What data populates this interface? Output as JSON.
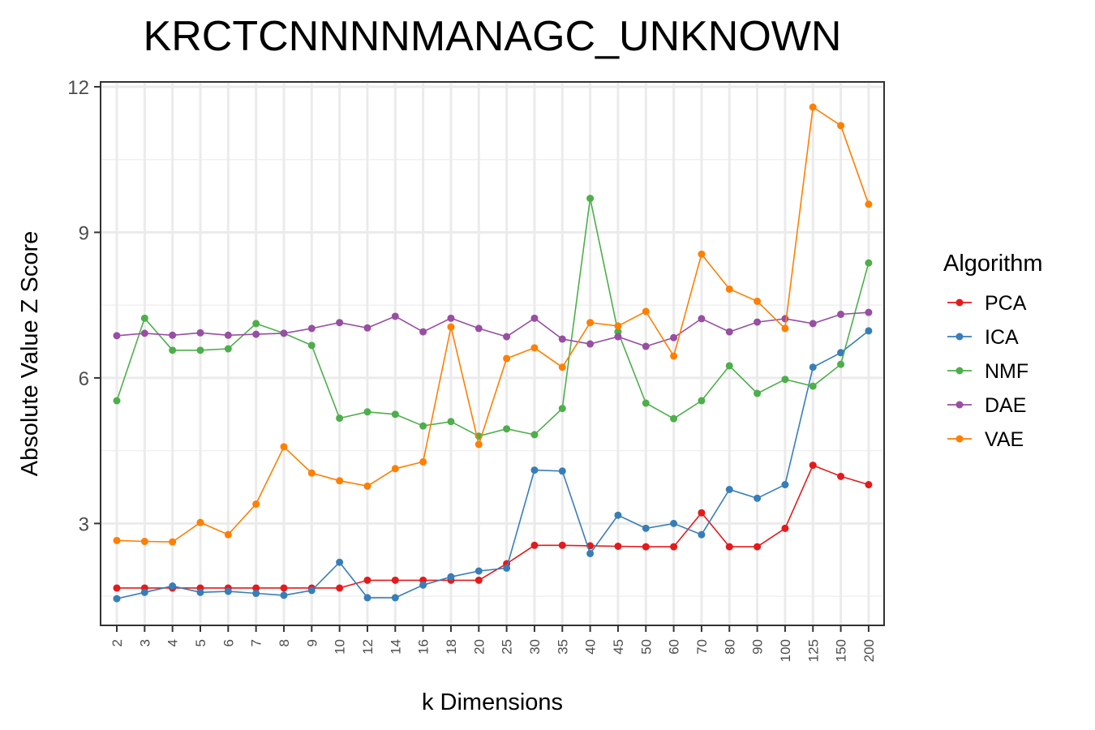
{
  "chart_data": {
    "type": "line",
    "title": "KRCTCNNNNMANAGC_UNKNOWN",
    "xlabel": "k Dimensions",
    "ylabel": "Absolute Value Z Score",
    "categories": [
      "2",
      "3",
      "4",
      "5",
      "6",
      "7",
      "8",
      "9",
      "10",
      "12",
      "14",
      "16",
      "18",
      "20",
      "25",
      "30",
      "35",
      "40",
      "45",
      "50",
      "60",
      "70",
      "80",
      "90",
      "100",
      "125",
      "150",
      "200"
    ],
    "ylim": [
      0.9,
      12.1
    ],
    "yticks": [
      "3",
      "6",
      "9",
      "12"
    ],
    "ytick_values": [
      3,
      6,
      9,
      12
    ],
    "grid": true,
    "legend": {
      "title": "Algorithm",
      "placement": "right"
    },
    "series": [
      {
        "name": "PCA",
        "color": "#E41A1C",
        "values": [
          1.67,
          1.67,
          1.67,
          1.67,
          1.67,
          1.67,
          1.67,
          1.67,
          1.67,
          1.83,
          1.83,
          1.83,
          1.83,
          1.83,
          2.17,
          2.55,
          2.55,
          2.54,
          2.53,
          2.52,
          2.52,
          3.22,
          2.52,
          2.52,
          2.9,
          4.2,
          3.97,
          3.8
        ]
      },
      {
        "name": "ICA",
        "color": "#377EB8",
        "values": [
          1.45,
          1.58,
          1.71,
          1.58,
          1.6,
          1.56,
          1.52,
          1.62,
          2.2,
          1.47,
          1.47,
          1.73,
          1.9,
          2.02,
          2.08,
          4.1,
          4.08,
          2.38,
          3.17,
          2.9,
          3.0,
          2.77,
          3.7,
          3.52,
          3.8,
          6.22,
          6.52,
          6.97
        ]
      },
      {
        "name": "NMF",
        "color": "#4DAF4A",
        "values": [
          5.53,
          7.23,
          6.57,
          6.57,
          6.6,
          7.12,
          6.92,
          6.67,
          5.17,
          5.3,
          5.25,
          5.01,
          5.1,
          4.8,
          4.95,
          4.83,
          5.37,
          9.7,
          6.95,
          5.48,
          5.16,
          5.53,
          6.25,
          5.68,
          5.97,
          5.83,
          6.28,
          8.37
        ]
      },
      {
        "name": "DAE",
        "color": "#984EA3",
        "values": [
          6.87,
          6.92,
          6.88,
          6.93,
          6.88,
          6.9,
          6.92,
          7.02,
          7.14,
          7.03,
          7.27,
          6.95,
          7.23,
          7.02,
          6.85,
          7.23,
          6.8,
          6.7,
          6.85,
          6.65,
          6.83,
          7.22,
          6.95,
          7.15,
          7.22,
          7.12,
          7.31,
          7.35
        ]
      },
      {
        "name": "VAE",
        "color": "#FF7F00",
        "values": [
          2.65,
          2.63,
          2.62,
          3.02,
          2.77,
          3.4,
          4.58,
          4.04,
          3.88,
          3.77,
          4.13,
          4.27,
          7.05,
          4.63,
          6.4,
          6.62,
          6.22,
          7.14,
          7.07,
          7.37,
          6.45,
          8.55,
          7.83,
          7.58,
          7.02,
          11.58,
          11.2,
          9.58
        ]
      }
    ]
  }
}
